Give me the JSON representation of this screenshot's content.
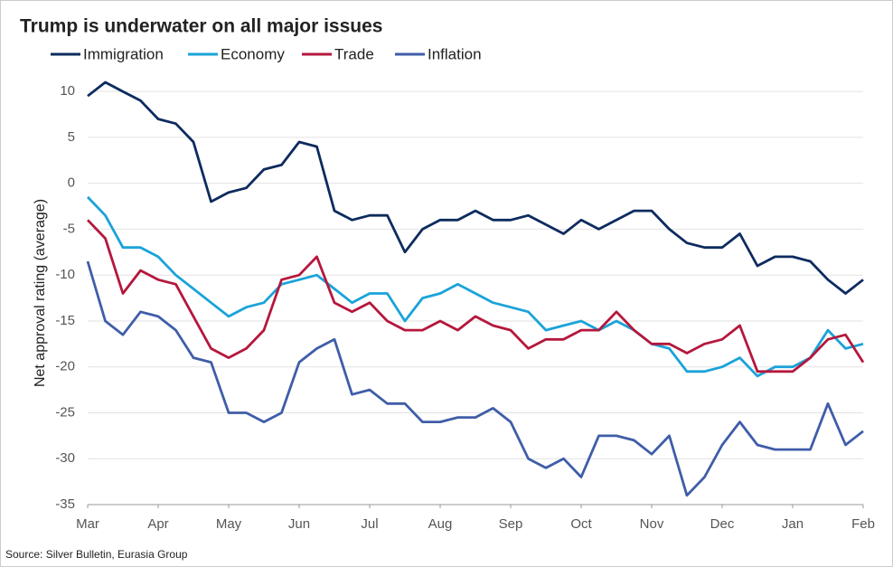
{
  "chart_data": {
    "type": "line",
    "title": "Trump is underwater on all major issues",
    "y_label": "Net approval rating (average)",
    "source": "Source: Silver Bulletin, Eurasia Group",
    "x": [
      0,
      0.25,
      0.5,
      0.75,
      1,
      1.25,
      1.5,
      1.75,
      2,
      2.25,
      2.5,
      2.75,
      3,
      3.25,
      3.5,
      3.75,
      4,
      4.25,
      4.5,
      4.75,
      5,
      5.25,
      5.5,
      5.75,
      6,
      6.25,
      6.5,
      6.75,
      7,
      7.25,
      7.5,
      7.75,
      8,
      8.25,
      8.5,
      8.75,
      9,
      9.25,
      9.5,
      9.75,
      10,
      10.25,
      10.5,
      10.75,
      11
    ],
    "xlim": [
      0,
      11
    ],
    "xticks": [
      {
        "value": 0,
        "label": "Mar"
      },
      {
        "value": 1,
        "label": "Apr"
      },
      {
        "value": 2,
        "label": "May"
      },
      {
        "value": 3,
        "label": "Jun"
      },
      {
        "value": 4,
        "label": "Jul"
      },
      {
        "value": 5,
        "label": "Aug"
      },
      {
        "value": 6,
        "label": "Sep"
      },
      {
        "value": 7,
        "label": "Oct"
      },
      {
        "value": 8,
        "label": "Nov"
      },
      {
        "value": 9,
        "label": "Dec"
      },
      {
        "value": 10,
        "label": "Jan"
      },
      {
        "value": 11,
        "label": "Feb"
      }
    ],
    "ylim": [
      -35,
      11
    ],
    "yticks": [
      -35,
      -30,
      -25,
      -20,
      -15,
      -10,
      -5,
      0,
      5,
      10
    ],
    "grid": true,
    "series": [
      {
        "name": "Immigration",
        "color": "#0d2b5e",
        "values": [
          9.5,
          11,
          10,
          9,
          7,
          6.5,
          4.5,
          -2,
          -1,
          -0.5,
          1.5,
          2,
          4.5,
          4,
          -3,
          -4,
          -3.5,
          -3.5,
          -7.5,
          -5,
          -4,
          -4,
          -3,
          -4,
          -4,
          -3.5,
          -4.5,
          -5.5,
          -4,
          -5,
          -4,
          -3,
          -3,
          -5,
          -6.5,
          -7,
          -7,
          -5.5,
          -9,
          -8,
          -8,
          -8.5,
          -10.5,
          -12,
          -10.5
        ]
      },
      {
        "name": "Economy",
        "color": "#1aa3d9",
        "values": [
          -1.5,
          -3.5,
          -7,
          -7,
          -8,
          -10,
          -11.5,
          -13,
          -14.5,
          -13.5,
          -13,
          -11,
          -10.5,
          -10,
          -11.5,
          -13,
          -12,
          -12,
          -15,
          -12.5,
          -12,
          -11,
          -12,
          -13,
          -13.5,
          -14,
          -16,
          -15.5,
          -15,
          -16,
          -15,
          -16,
          -17.5,
          -18,
          -20.5,
          -20.5,
          -20,
          -19,
          -21,
          -20,
          -20,
          -19,
          -16,
          -18,
          -17.5
        ]
      },
      {
        "name": "Trade",
        "color": "#b5173c",
        "values": [
          -4,
          -6,
          -12,
          -9.5,
          -10.5,
          -11,
          -14.5,
          -18,
          -19,
          -18,
          -16,
          -10.5,
          -10,
          -8,
          -13,
          -14,
          -13,
          -15,
          -16,
          -16,
          -15,
          -16,
          -14.5,
          -15.5,
          -16,
          -18,
          -17,
          -17,
          -16,
          -16,
          -14,
          -16,
          -17.5,
          -17.5,
          -18.5,
          -17.5,
          -17,
          -15.5,
          -20.5,
          -20.5,
          -20.5,
          -19,
          -17,
          -16.5,
          -19.5
        ]
      },
      {
        "name": "Inflation",
        "color": "#3f5da8",
        "values": [
          -8.5,
          -15,
          -16.5,
          -14,
          -14.5,
          -16,
          -19,
          -19.5,
          -25,
          -25,
          -26,
          -25,
          -19.5,
          -18,
          -17,
          -23,
          -22.5,
          -24,
          -24,
          -26,
          -26,
          -25.5,
          -25.5,
          -24.5,
          -26,
          -30,
          -31,
          -30,
          -32,
          -27.5,
          -27.5,
          -28,
          -29.5,
          -27.5,
          -34,
          -32,
          -28.5,
          -26,
          -28.5,
          -29,
          -29,
          -29,
          -24,
          -28.5,
          -27
        ]
      }
    ]
  }
}
